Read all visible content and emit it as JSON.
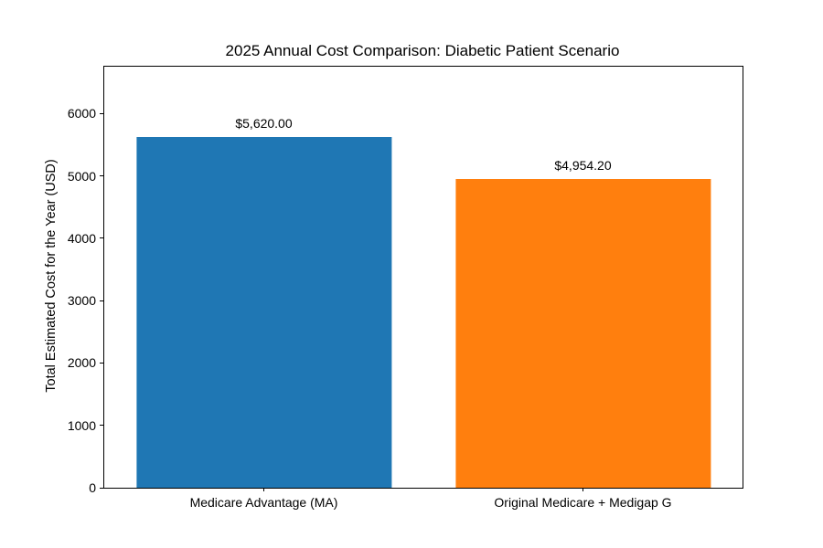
{
  "chart_data": {
    "type": "bar",
    "title": "2025 Annual Cost Comparison: Diabetic Patient Scenario",
    "ylabel": "Total Estimated Cost for the Year (USD)",
    "xlabel": "",
    "categories": [
      "Medicare Advantage (MA)",
      "Original Medicare + Medigap G"
    ],
    "values": [
      5620.0,
      4954.2
    ],
    "bar_labels": [
      "$5,620.00",
      "$4,954.20"
    ],
    "colors": [
      "#1f77b4",
      "#ff7f0e"
    ],
    "yticks": [
      0,
      1000,
      2000,
      3000,
      4000,
      5000,
      6000
    ],
    "ylim": [
      0,
      6750
    ],
    "grid": false,
    "legend": false,
    "background_color": "#ffffff",
    "spine_color": "#000000"
  }
}
